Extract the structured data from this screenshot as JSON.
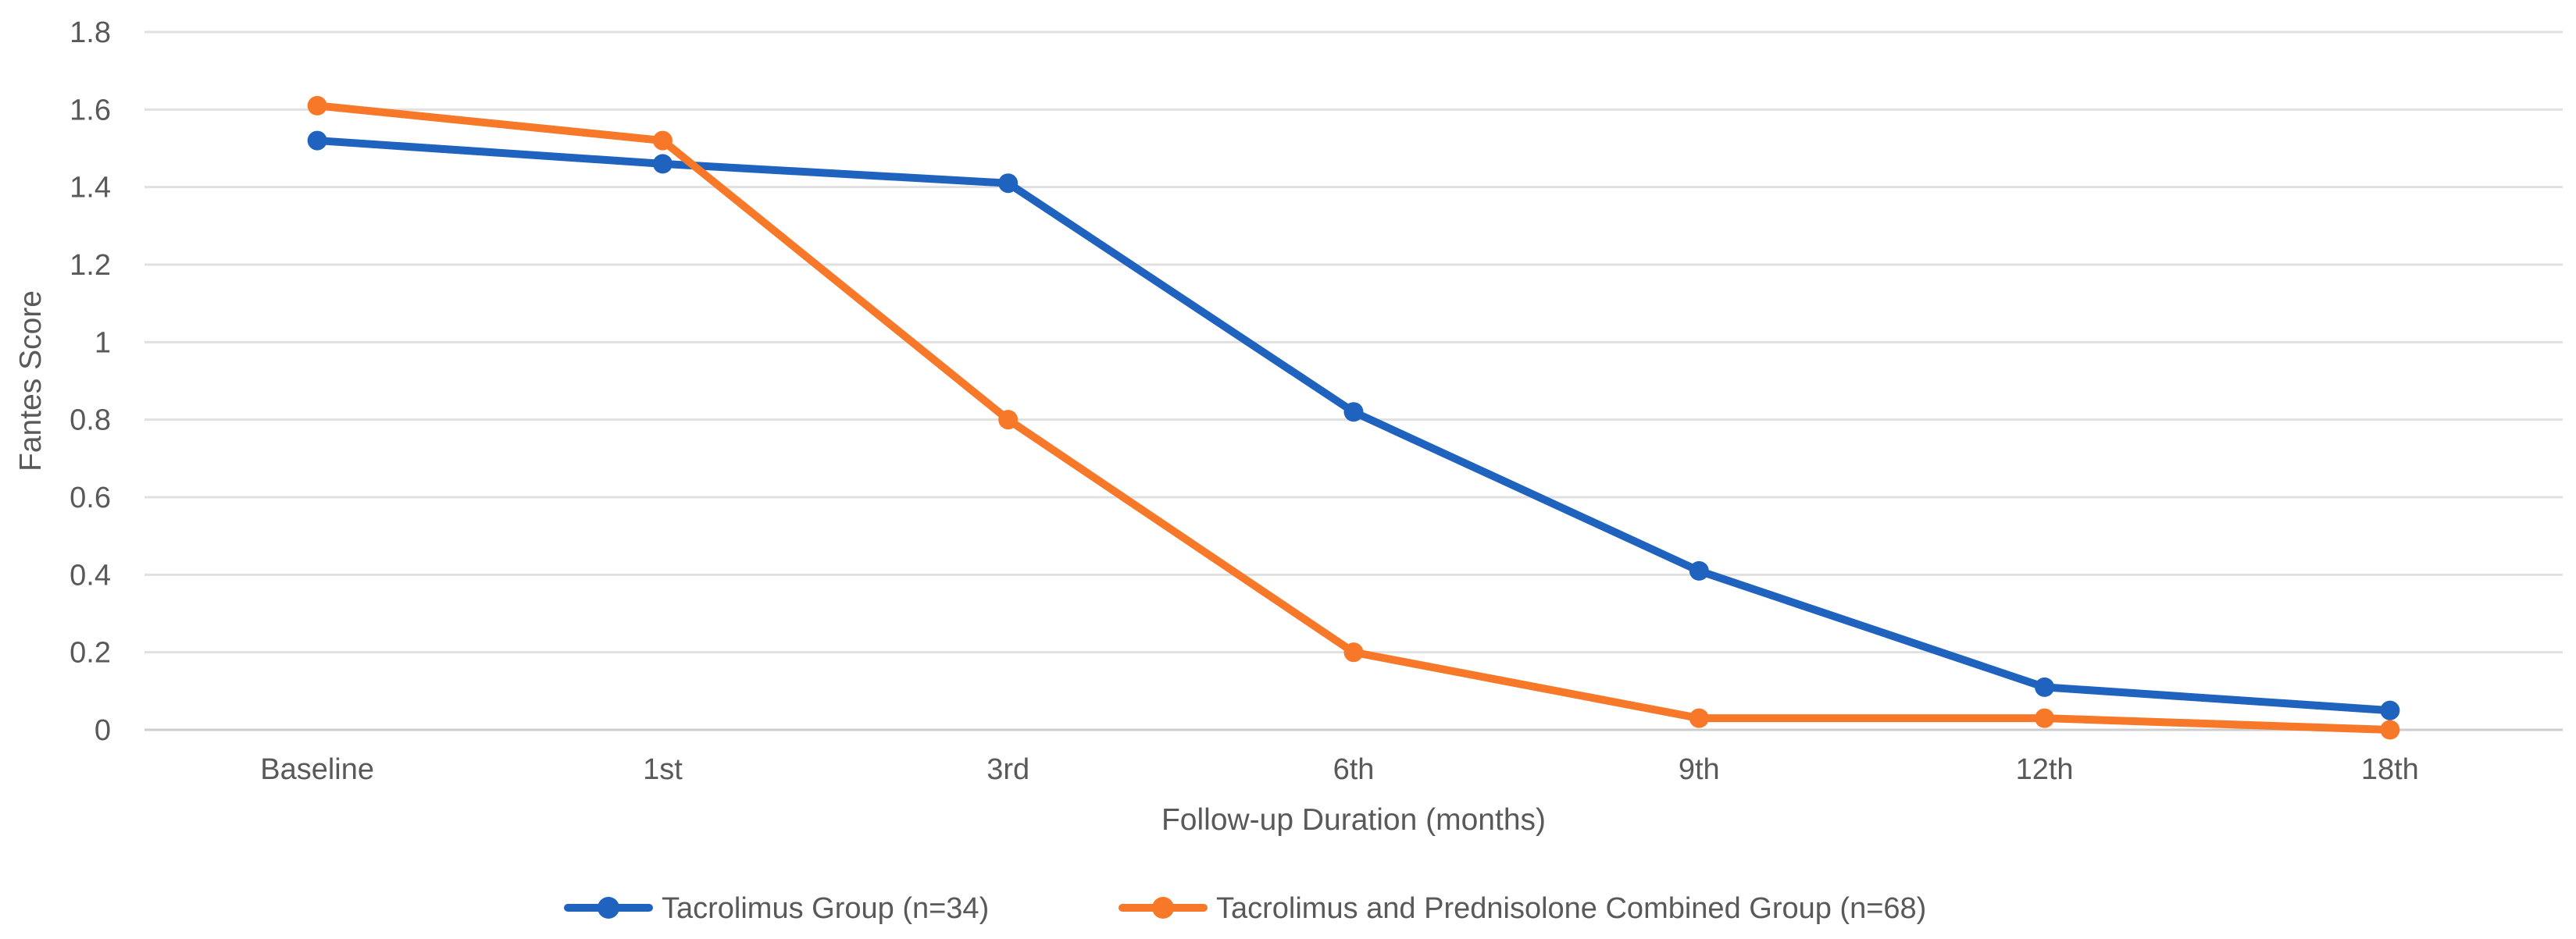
{
  "chart_data": {
    "type": "line",
    "title": "",
    "xlabel": "Follow-up Duration (months)",
    "ylabel": "Fantes Score",
    "categories": [
      "Baseline",
      "1st",
      "3rd",
      "6th",
      "9th",
      "12th",
      "18th"
    ],
    "series": [
      {
        "name": "Tacrolimus Group (n=34)",
        "color": "#1F63BE",
        "marker": "circle",
        "values": [
          1.52,
          1.46,
          1.41,
          0.82,
          0.41,
          0.11,
          0.05
        ]
      },
      {
        "name": "Tacrolimus and Prednisolone Combined Group (n=68)",
        "color": "#F67828",
        "marker": "circle",
        "values": [
          1.61,
          1.52,
          0.8,
          0.2,
          0.03,
          0.03,
          0.0
        ]
      }
    ],
    "ylim": [
      0,
      1.8
    ],
    "ytick_step": 0.2,
    "ytick_labels": [
      "0",
      "0.2",
      "0.4",
      "0.6",
      "0.8",
      "1",
      "1.2",
      "1.4",
      "1.6",
      "1.8"
    ],
    "grid": true,
    "legend_position": "bottom",
    "colors": {
      "axis_text": "#595959",
      "gridline": "#E0E0E0",
      "axis_line": "#CDCDCD",
      "background": "#FFFFFF"
    }
  }
}
